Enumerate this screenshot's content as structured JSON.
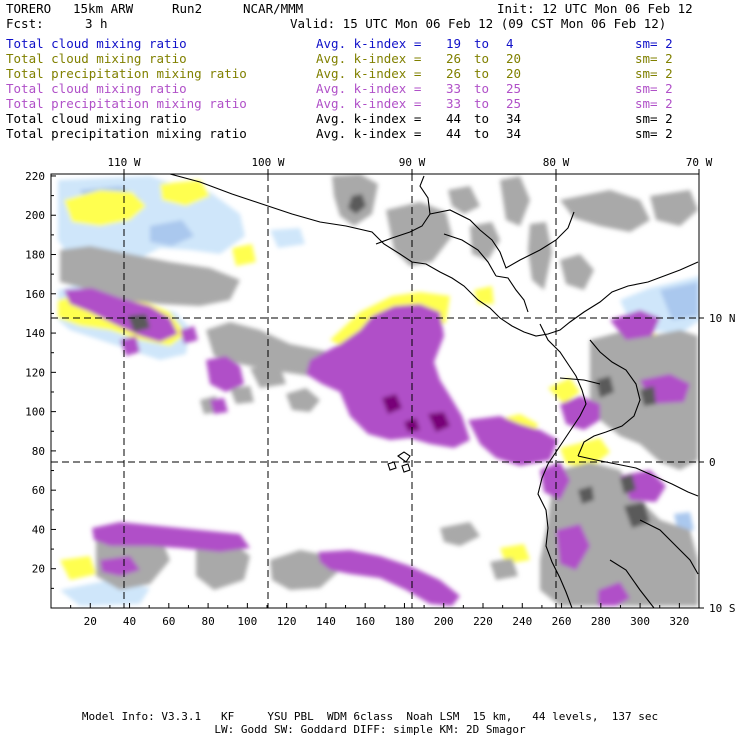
{
  "header": {
    "model": "TORERO",
    "resolution": "15km ARW",
    "run": "Run2",
    "org": "NCAR/MMM",
    "init": "Init: 12 UTC Mon 06 Feb 12",
    "fcst_label": "Fcst:",
    "fcst_value": "3 h",
    "valid": "Valid: 15 UTC Mon 06 Feb 12 (09 CST Mon 06 Feb 12)"
  },
  "legend": [
    {
      "field": "Total cloud mixing ratio",
      "index": "Avg. k-index =",
      "from": "19",
      "to_word": "to",
      "to": "4",
      "sm": "sm= 2",
      "color": "#1010c8"
    },
    {
      "field": "Total cloud mixing ratio",
      "index": "Avg. k-index =",
      "from": "26",
      "to_word": "to",
      "to": "20",
      "sm": "sm= 2",
      "color": "#808000"
    },
    {
      "field": "Total precipitation mixing ratio",
      "index": "Avg. k-index =",
      "from": "26",
      "to_word": "to",
      "to": "20",
      "sm": "sm= 2",
      "color": "#808000"
    },
    {
      "field": "Total cloud mixing ratio",
      "index": "Avg. k-index =",
      "from": "33",
      "to_word": "to",
      "to": "25",
      "sm": "sm= 2",
      "color": "#b050c8"
    },
    {
      "field": "Total precipitation mixing ratio",
      "index": "Avg. k-index =",
      "from": "33",
      "to_word": "to",
      "to": "25",
      "sm": "sm= 2",
      "color": "#b050c8"
    },
    {
      "field": "Total cloud mixing ratio",
      "index": "Avg. k-index =",
      "from": "44",
      "to_word": "to",
      "to": "34",
      "sm": "sm= 2",
      "color": "#000000"
    },
    {
      "field": "Total precipitation mixing ratio",
      "index": "Avg. k-index =",
      "from": "44",
      "to_word": "to",
      "to": "34",
      "sm": "sm= 2",
      "color": "#000000"
    }
  ],
  "map": {
    "colors": {
      "light_blue": "#cfe6fa",
      "blue": "#aac8ee",
      "yellow": "#ffff50",
      "gray": "#a9a9a9",
      "dark_gray": "#5a5a5a",
      "purple": "#b050c8",
      "dark_purple": "#780078",
      "coast": "#000000"
    },
    "longitude_labels": [
      "110 W",
      "100 W",
      "90 W",
      "80 W",
      "70 W"
    ],
    "latitude_labels": [
      "10 N",
      "0",
      "10 S"
    ],
    "x_ticks": [
      "20",
      "40",
      "60",
      "80",
      "100",
      "120",
      "140",
      "160",
      "180",
      "200",
      "220",
      "240",
      "260",
      "280",
      "300",
      "320"
    ],
    "y_ticks": [
      "220",
      "200",
      "180",
      "160",
      "140",
      "120",
      "100",
      "80",
      "60",
      "40",
      "20"
    ]
  },
  "footer": {
    "line1": "Model Info: V3.3.1   KF     YSU PBL  WDM 6class  Noah LSM  15 km,   44 levels,  137 sec",
    "line2": "LW: Godd SW: Goddard DIFF: simple KM: 2D Smagor"
  }
}
